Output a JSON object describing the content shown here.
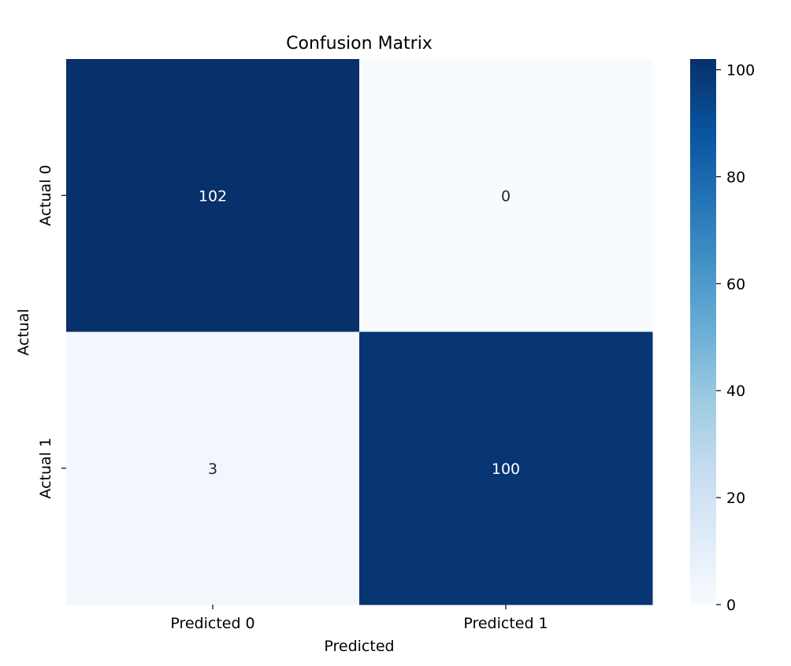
{
  "chart_data": {
    "type": "heatmap",
    "title": "Confusion Matrix",
    "xlabel": "Predicted",
    "ylabel": "Actual",
    "x_categories": [
      "Predicted 0",
      "Predicted 1"
    ],
    "y_categories": [
      "Actual 0",
      "Actual 1"
    ],
    "values": [
      [
        102,
        0
      ],
      [
        3,
        100
      ]
    ],
    "colormap": "Blues",
    "colorbar": {
      "range": [
        0,
        102
      ],
      "ticks": [
        0,
        20,
        40,
        60,
        80,
        100
      ]
    },
    "grid": false
  }
}
